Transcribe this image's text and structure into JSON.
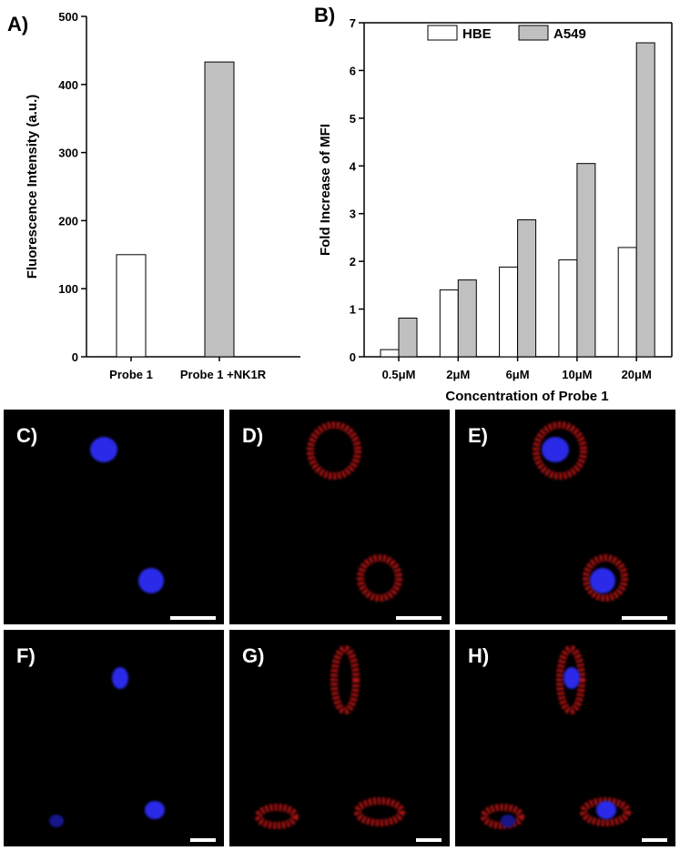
{
  "chart_data": [
    {
      "type": "bar",
      "label": "A)",
      "ylabel": "Fluorescence Intensity (a.u.)",
      "categories": [
        "Probe 1",
        "Probe 1 +NK1R"
      ],
      "values": [
        150,
        433
      ],
      "colors": [
        "#ffffff",
        "#c0c0c0"
      ],
      "ylim": [
        0,
        500
      ],
      "yticks": [
        0,
        100,
        200,
        300,
        400,
        500
      ]
    },
    {
      "type": "grouped-bar",
      "label": "B)",
      "ylabel": "Fold Increase of MFI",
      "xlabel": "Concentration of Probe 1",
      "categories": [
        "0.5μM",
        "2μM",
        "6μM",
        "10μM",
        "20μM"
      ],
      "series": [
        {
          "name": "HBE",
          "color": "#ffffff",
          "values": [
            0.15,
            1.4,
            1.88,
            2.03,
            2.29
          ]
        },
        {
          "name": "A549",
          "color": "#c0c0c0",
          "values": [
            0.81,
            1.61,
            2.87,
            4.05,
            6.58
          ]
        }
      ],
      "ylim": [
        0,
        7
      ],
      "yticks": [
        0,
        1,
        2,
        3,
        4,
        5,
        6,
        7
      ],
      "legend": "top"
    }
  ],
  "images": [
    {
      "label": "C)"
    },
    {
      "label": "D)"
    },
    {
      "label": "E)"
    },
    {
      "label": "F)"
    },
    {
      "label": "G)"
    },
    {
      "label": "H)"
    }
  ]
}
